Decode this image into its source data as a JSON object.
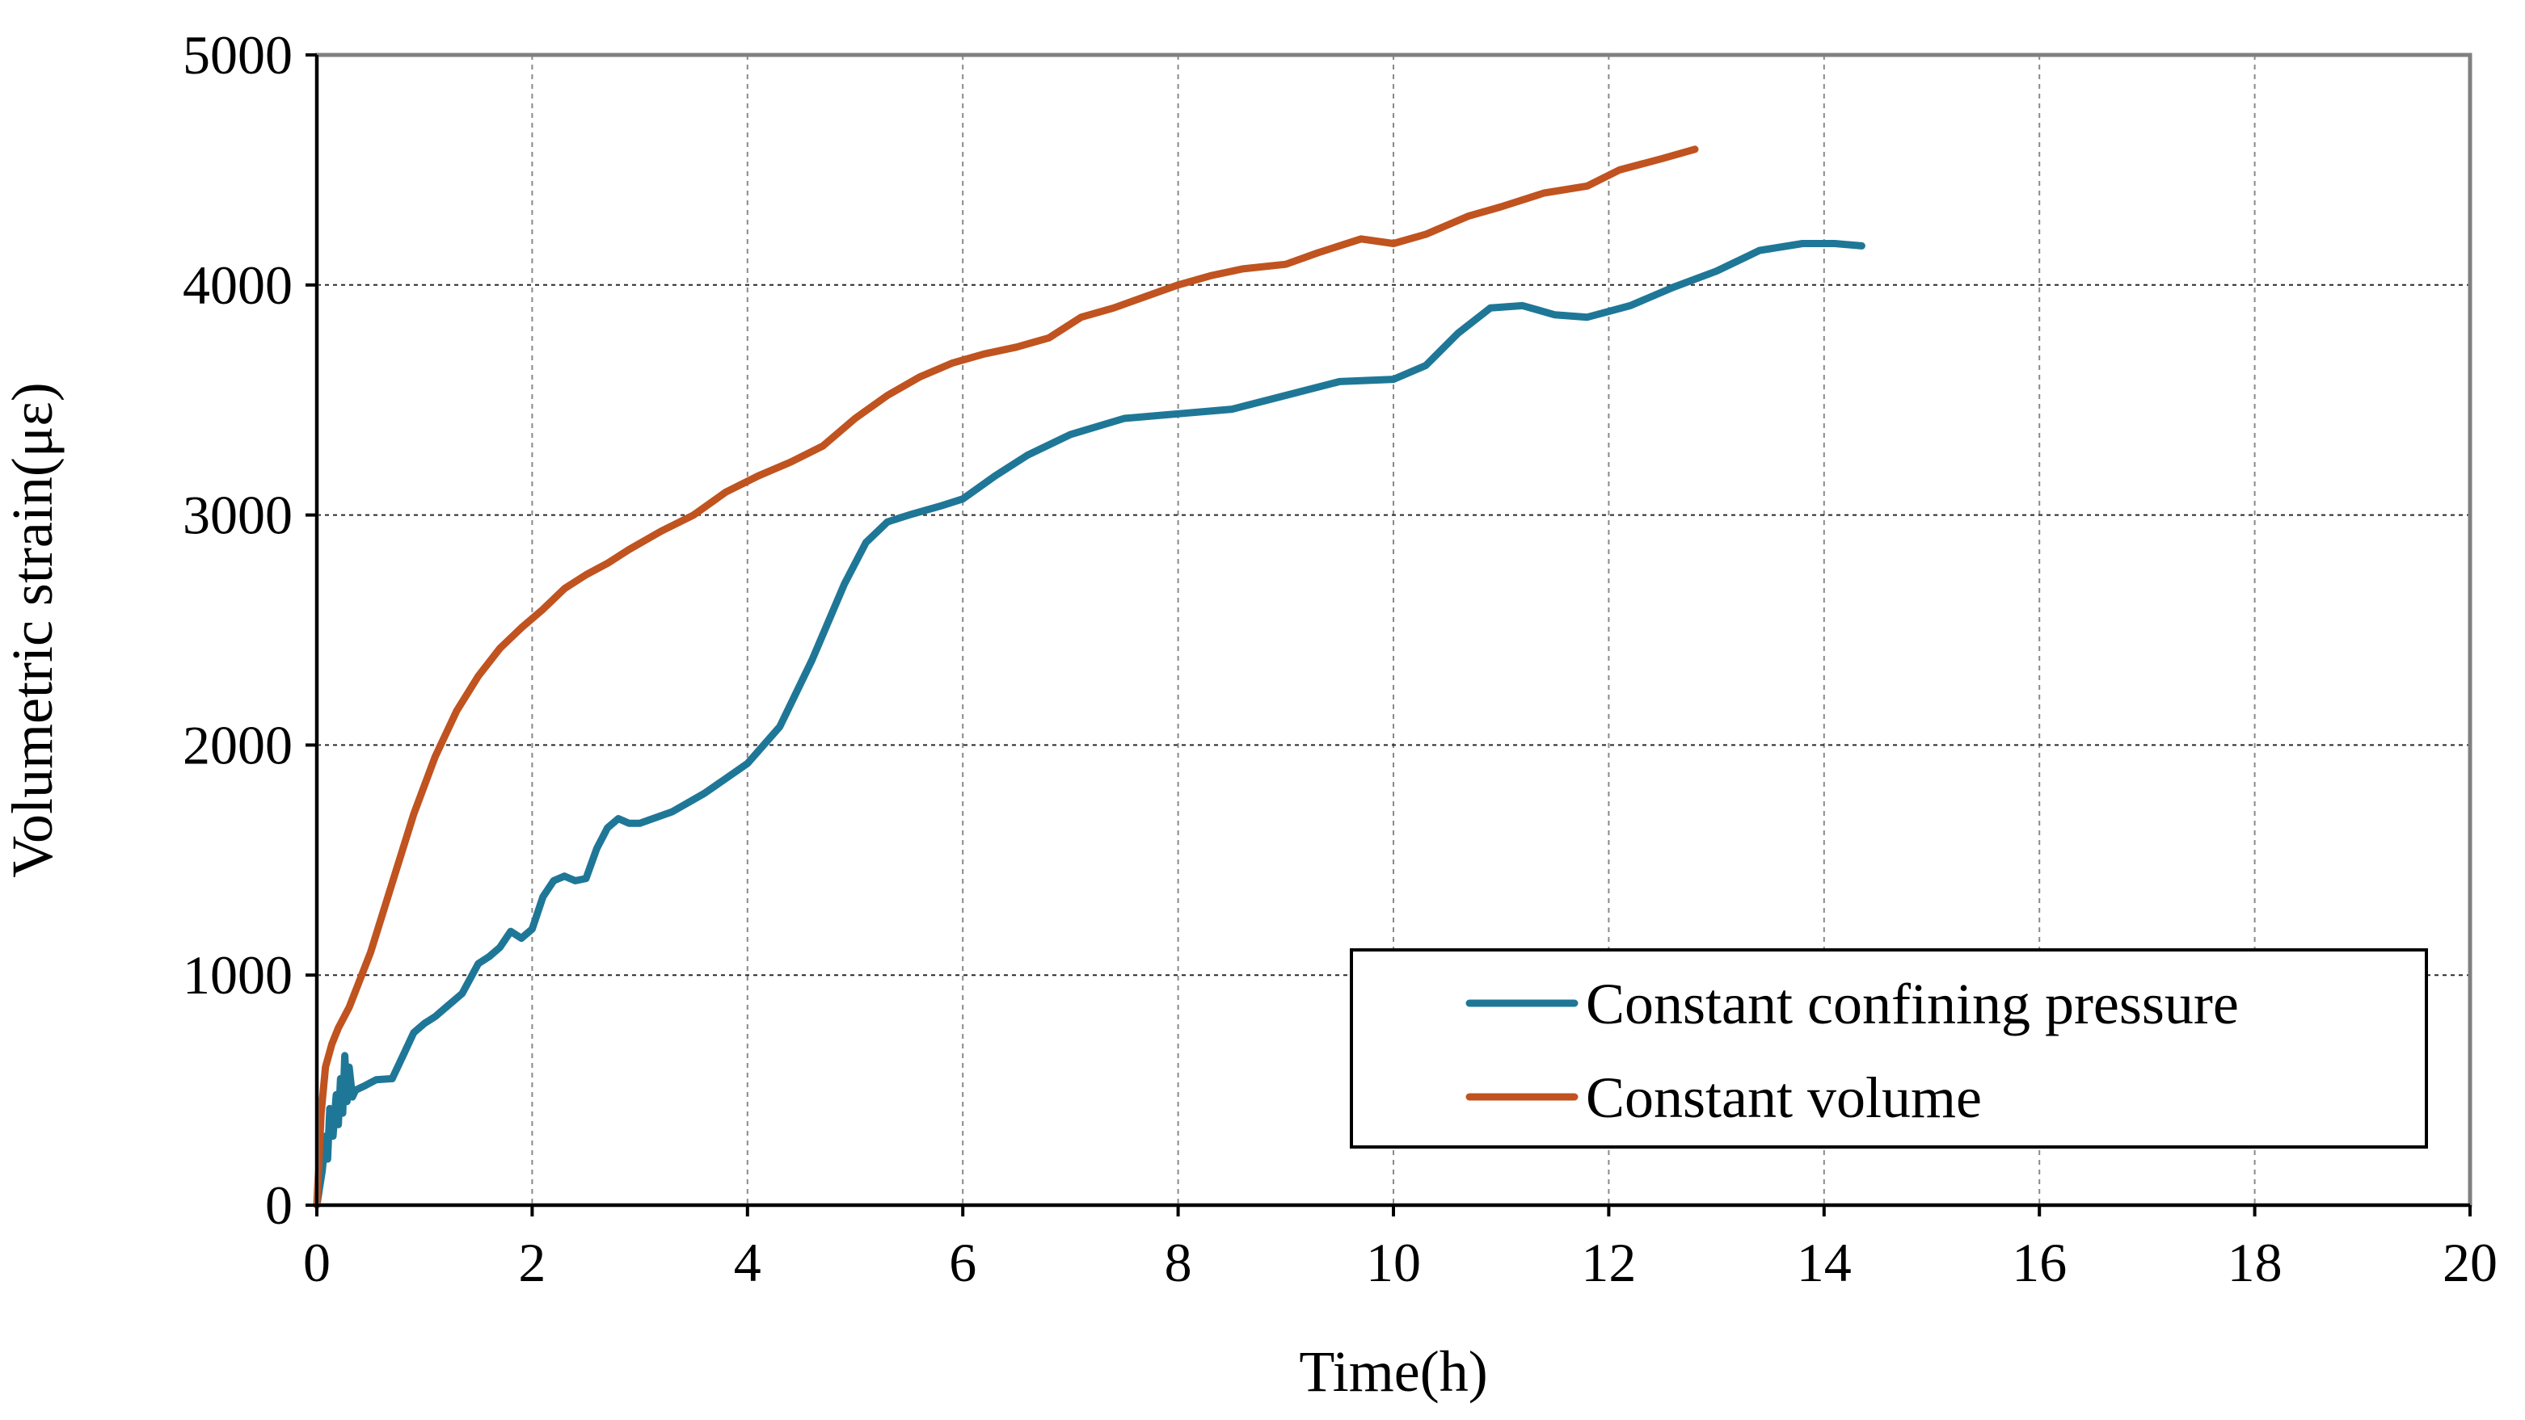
{
  "chart_data": {
    "type": "line",
    "title": "",
    "xlabel": "Time(h)",
    "ylabel": "Volumetric strain(με)",
    "xlim": [
      0,
      20
    ],
    "ylim": [
      0,
      5000
    ],
    "x_ticks": [
      0,
      2,
      4,
      6,
      8,
      10,
      12,
      14,
      16,
      18,
      20
    ],
    "y_ticks": [
      0,
      1000,
      2000,
      3000,
      4000,
      5000
    ],
    "x_tick_labels": [
      "0",
      "2",
      "4",
      "6",
      "8",
      "10",
      "12",
      "14",
      "16",
      "18",
      "20"
    ],
    "y_tick_labels": [
      "0",
      "1000",
      "2000",
      "3000",
      "4000",
      "5000"
    ],
    "grid": {
      "vertical": "dashed",
      "horizontal": "dashed",
      "on": true
    },
    "legend": {
      "position": "bottom-right",
      "entries": [
        "Constant confining pressure",
        "Constant volume"
      ]
    },
    "series": [
      {
        "name": "Constant confining pressure",
        "color": "#1F7797",
        "points": [
          [
            0,
            0
          ],
          [
            0.05,
            150
          ],
          [
            0.08,
            300
          ],
          [
            0.1,
            200
          ],
          [
            0.12,
            420
          ],
          [
            0.15,
            300
          ],
          [
            0.18,
            480
          ],
          [
            0.2,
            350
          ],
          [
            0.22,
            550
          ],
          [
            0.24,
            400
          ],
          [
            0.26,
            650
          ],
          [
            0.28,
            450
          ],
          [
            0.3,
            600
          ],
          [
            0.33,
            470
          ],
          [
            0.36,
            500
          ],
          [
            0.45,
            520
          ],
          [
            0.55,
            545
          ],
          [
            0.7,
            550
          ],
          [
            0.8,
            650
          ],
          [
            0.9,
            750
          ],
          [
            1.0,
            790
          ],
          [
            1.1,
            820
          ],
          [
            1.2,
            860
          ],
          [
            1.35,
            920
          ],
          [
            1.5,
            1050
          ],
          [
            1.6,
            1080
          ],
          [
            1.7,
            1120
          ],
          [
            1.8,
            1190
          ],
          [
            1.9,
            1160
          ],
          [
            2.0,
            1200
          ],
          [
            2.1,
            1340
          ],
          [
            2.2,
            1410
          ],
          [
            2.3,
            1430
          ],
          [
            2.4,
            1410
          ],
          [
            2.5,
            1420
          ],
          [
            2.6,
            1550
          ],
          [
            2.7,
            1640
          ],
          [
            2.8,
            1680
          ],
          [
            2.9,
            1660
          ],
          [
            3.0,
            1660
          ],
          [
            3.3,
            1710
          ],
          [
            3.6,
            1790
          ],
          [
            4.0,
            1920
          ],
          [
            4.3,
            2080
          ],
          [
            4.6,
            2370
          ],
          [
            4.9,
            2700
          ],
          [
            5.1,
            2880
          ],
          [
            5.3,
            2970
          ],
          [
            5.5,
            3000
          ],
          [
            5.8,
            3040
          ],
          [
            6.0,
            3070
          ],
          [
            6.3,
            3170
          ],
          [
            6.6,
            3260
          ],
          [
            7.0,
            3350
          ],
          [
            7.5,
            3420
          ],
          [
            8.0,
            3440
          ],
          [
            8.5,
            3460
          ],
          [
            9.0,
            3520
          ],
          [
            9.5,
            3580
          ],
          [
            10.0,
            3590
          ],
          [
            10.3,
            3650
          ],
          [
            10.6,
            3790
          ],
          [
            10.9,
            3900
          ],
          [
            11.2,
            3910
          ],
          [
            11.5,
            3870
          ],
          [
            11.8,
            3860
          ],
          [
            12.2,
            3910
          ],
          [
            12.6,
            3990
          ],
          [
            13.0,
            4060
          ],
          [
            13.4,
            4150
          ],
          [
            13.8,
            4180
          ],
          [
            14.1,
            4180
          ],
          [
            14.35,
            4170
          ]
        ]
      },
      {
        "name": "Constant volume",
        "color": "#C0531F",
        "points": [
          [
            0,
            0
          ],
          [
            0.04,
            400
          ],
          [
            0.08,
            600
          ],
          [
            0.14,
            700
          ],
          [
            0.2,
            770
          ],
          [
            0.3,
            860
          ],
          [
            0.5,
            1100
          ],
          [
            0.7,
            1400
          ],
          [
            0.9,
            1700
          ],
          [
            1.1,
            1950
          ],
          [
            1.3,
            2150
          ],
          [
            1.5,
            2300
          ],
          [
            1.7,
            2420
          ],
          [
            1.9,
            2510
          ],
          [
            2.1,
            2590
          ],
          [
            2.3,
            2680
          ],
          [
            2.5,
            2740
          ],
          [
            2.7,
            2790
          ],
          [
            2.9,
            2850
          ],
          [
            3.2,
            2930
          ],
          [
            3.5,
            3000
          ],
          [
            3.8,
            3100
          ],
          [
            4.1,
            3170
          ],
          [
            4.4,
            3230
          ],
          [
            4.7,
            3300
          ],
          [
            5.0,
            3420
          ],
          [
            5.3,
            3520
          ],
          [
            5.6,
            3600
          ],
          [
            5.9,
            3660
          ],
          [
            6.2,
            3700
          ],
          [
            6.5,
            3730
          ],
          [
            6.8,
            3770
          ],
          [
            7.1,
            3860
          ],
          [
            7.4,
            3900
          ],
          [
            7.7,
            3950
          ],
          [
            8.0,
            4000
          ],
          [
            8.3,
            4040
          ],
          [
            8.6,
            4070
          ],
          [
            9.0,
            4090
          ],
          [
            9.3,
            4140
          ],
          [
            9.7,
            4200
          ],
          [
            10.0,
            4180
          ],
          [
            10.3,
            4220
          ],
          [
            10.7,
            4300
          ],
          [
            11.0,
            4340
          ],
          [
            11.4,
            4400
          ],
          [
            11.8,
            4430
          ],
          [
            12.1,
            4500
          ],
          [
            12.5,
            4550
          ],
          [
            12.8,
            4590
          ]
        ]
      }
    ]
  }
}
